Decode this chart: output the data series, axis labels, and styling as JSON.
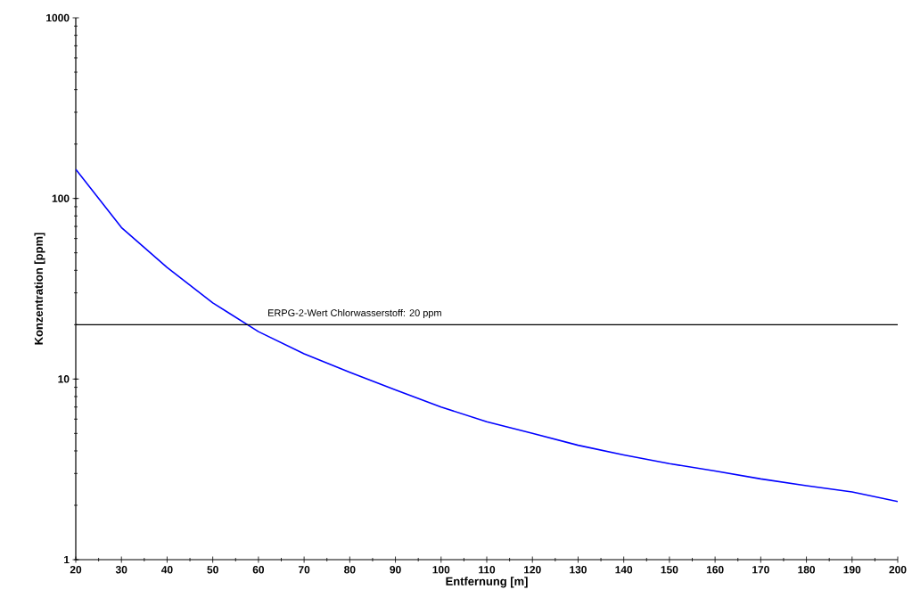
{
  "chart_data": {
    "type": "line",
    "xlabel": "Entfernung [m]",
    "ylabel": "Konzentration [ppm]",
    "x": [
      20,
      30,
      40,
      50,
      60,
      70,
      80,
      90,
      100,
      110,
      120,
      130,
      140,
      150,
      160,
      170,
      180,
      190,
      200
    ],
    "series": [
      {
        "color": "#0000ff",
        "values": [
          145,
          69,
          41.5,
          26.4,
          18.3,
          13.8,
          10.9,
          8.7,
          7.0,
          5.8,
          5.0,
          4.3,
          3.8,
          3.4,
          3.1,
          2.8,
          2.57,
          2.37,
          2.1
        ]
      }
    ],
    "log": "y",
    "marker": "none",
    "line_style": "solid",
    "grid": false,
    "xlim": [
      20,
      200
    ],
    "xticks": [
      20,
      30,
      40,
      50,
      60,
      70,
      80,
      90,
      100,
      110,
      120,
      130,
      140,
      150,
      160,
      170,
      180,
      190,
      200
    ],
    "ylim": [
      1,
      1000
    ],
    "yticks": [
      1,
      10,
      100,
      1000
    ],
    "ref_lines": [
      {
        "axis": "y",
        "value": 20,
        "label": "ERPG-2-Wert Chlorwasserstoff: 20 ppm",
        "color": "#000000"
      }
    ]
  }
}
